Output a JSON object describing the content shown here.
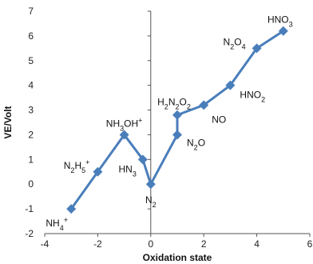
{
  "chart_data": {
    "type": "line",
    "title": "",
    "xlabel": "Oxidation state",
    "ylabel": "VE/Volt",
    "xlim": [
      -4,
      6
    ],
    "ylim": [
      -2,
      7
    ],
    "x_ticks": [
      -4,
      -2,
      0,
      2,
      4,
      6
    ],
    "y_ticks": [
      -2,
      -1,
      0,
      1,
      2,
      3,
      4,
      5,
      6,
      7
    ],
    "grid": false,
    "legend": "none",
    "color": "#4a7ebb",
    "series": [
      {
        "points": [
          {
            "x": -3,
            "y": -1,
            "label": "NH4+"
          },
          {
            "x": -2,
            "y": 0.5,
            "label": "N2H5+"
          },
          {
            "x": -1,
            "y": 2,
            "label": "NH3OH+"
          },
          {
            "x": -0.3,
            "y": 1,
            "label": "HN3"
          },
          {
            "x": 0,
            "y": 0,
            "label": "N2"
          },
          {
            "x": 1,
            "y": 2,
            "label": "N2O"
          },
          {
            "x": 1,
            "y": 2.8,
            "label": "H2N2O2"
          },
          {
            "x": 2,
            "y": 3.2,
            "label": "NO"
          },
          {
            "x": 3,
            "y": 4,
            "label": "HNO2"
          },
          {
            "x": 4,
            "y": 5.5,
            "label": "N2O4"
          },
          {
            "x": 5,
            "y": 6.2,
            "label": "HNO3"
          }
        ]
      }
    ]
  }
}
